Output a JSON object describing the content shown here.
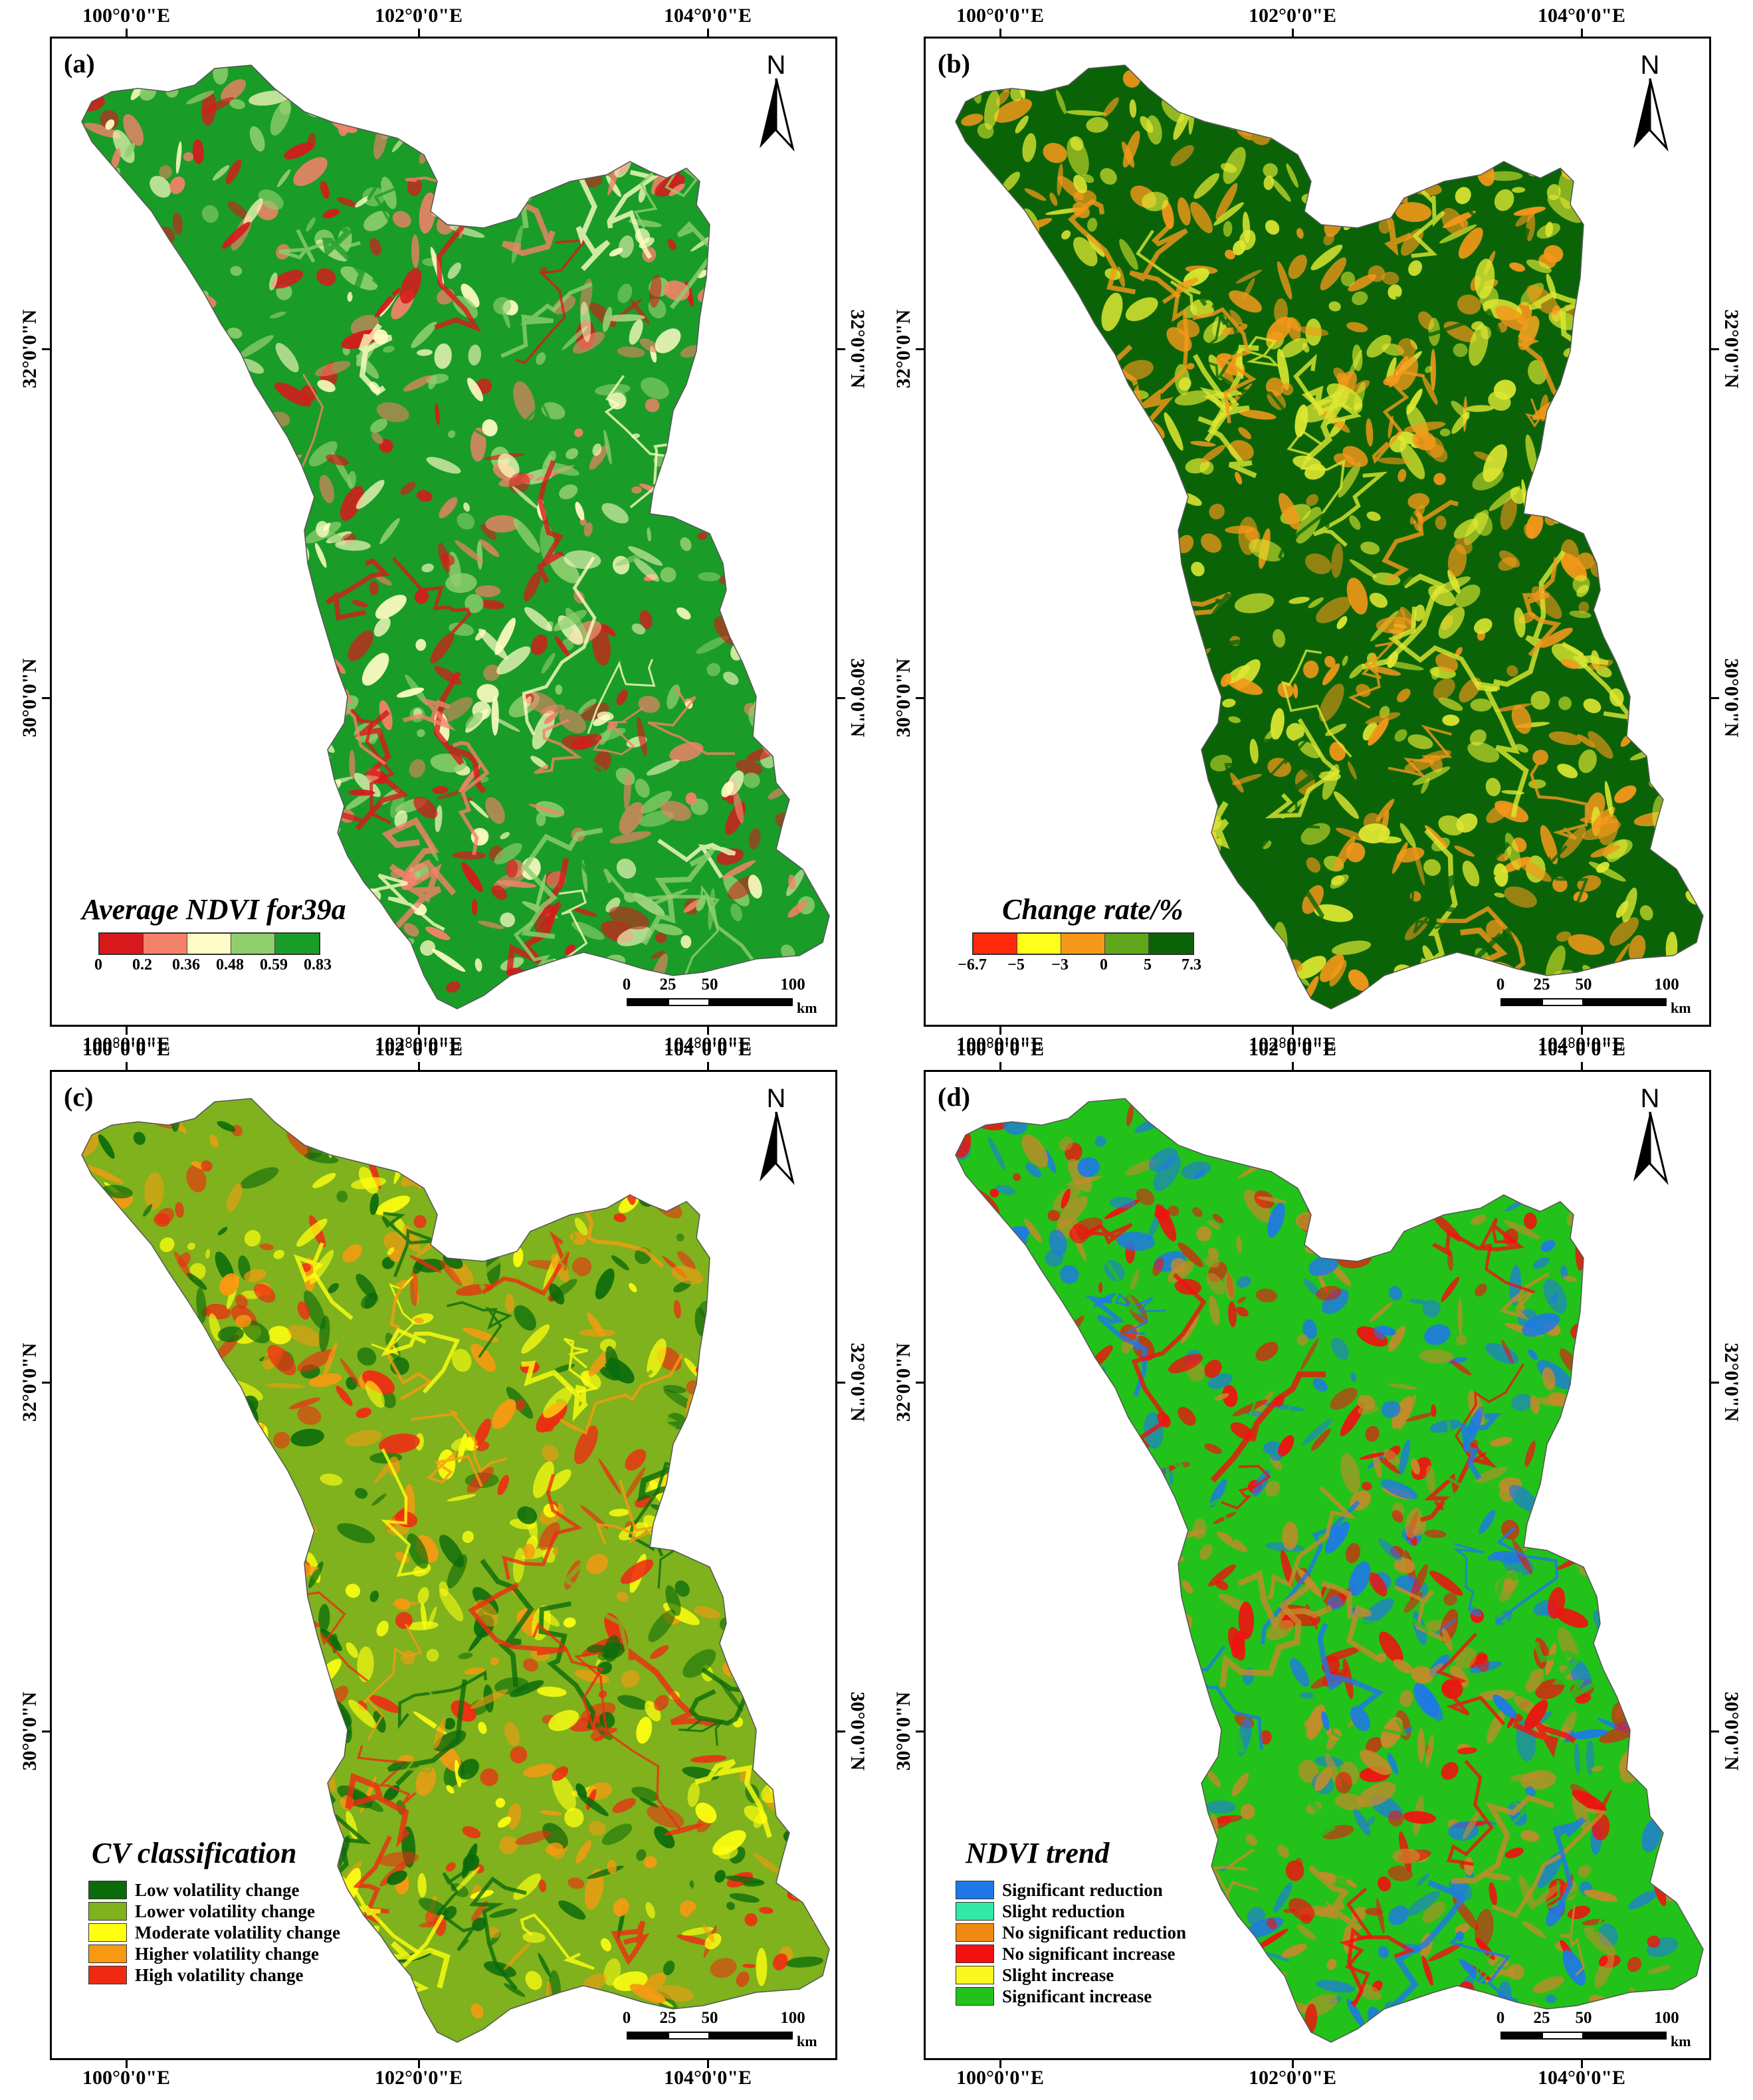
{
  "axes": {
    "lon_labels": [
      "100°0'0\"E",
      "102°0'0\"E",
      "104°0'0\"E"
    ],
    "lat_labels": [
      "32°0'0\"N",
      "30°0'0\"N"
    ]
  },
  "north_arrow": {
    "letter": "N",
    "icon": "north-arrow-icon"
  },
  "scale_bar": {
    "ticks": [
      "0",
      "25",
      "50",
      "100"
    ],
    "unit": "km"
  },
  "panels": [
    {
      "id": "a",
      "label": "(a)",
      "legend": {
        "type": "colorbar",
        "title": "Average NDVI for39a",
        "colors": [
          "#d7191c",
          "#f4826a",
          "#fefcc4",
          "#8fcf6e",
          "#1a9c28"
        ],
        "tick_labels": [
          "0",
          "0.2",
          "0.36",
          "0.48",
          "0.59",
          "0.83"
        ]
      },
      "palette": [
        "#1a9c28",
        "#8fcf6e",
        "#fefcc4",
        "#d7191c",
        "#f4826a"
      ]
    },
    {
      "id": "b",
      "label": "(b)",
      "legend": {
        "type": "colorbar",
        "title": "Change rate/%",
        "colors": [
          "#ff2a0a",
          "#ffff1a",
          "#f5981a",
          "#5fa81b",
          "#0a6407"
        ],
        "tick_labels": [
          "−6.7",
          "−5",
          "−3",
          "0",
          "5",
          "7.3"
        ]
      },
      "palette": [
        "#0a6407",
        "#f5981a",
        "#dfe832"
      ]
    },
    {
      "id": "c",
      "label": "(c)",
      "legend": {
        "type": "categorical",
        "title": "CV classification",
        "items": [
          {
            "color": "#0b6b0b",
            "label": "Low volatility change"
          },
          {
            "color": "#7fb21c",
            "label": "Lower volatility change"
          },
          {
            "color": "#ffff10",
            "label": "Moderate volatility change"
          },
          {
            "color": "#f79a12",
            "label": "Higher volatility change"
          },
          {
            "color": "#f02a12",
            "label": "High volatility change"
          }
        ]
      },
      "palette": [
        "#7fb21c",
        "#0b6b0b",
        "#ffff10",
        "#f79a12",
        "#f02a12"
      ]
    },
    {
      "id": "d",
      "label": "(d)",
      "legend": {
        "type": "categorical",
        "title": "NDVI trend",
        "items": [
          {
            "color": "#1f78e8",
            "label": "Significant reduction"
          },
          {
            "color": "#30e8a8",
            "label": "Slight reduction"
          },
          {
            "color": "#f08a12",
            "label": "No significant reduction"
          },
          {
            "color": "#f21010",
            "label": "No significant increase"
          },
          {
            "color": "#f8f820",
            "label": "Slight increase"
          },
          {
            "color": "#22c21a",
            "label": "Significant increase"
          }
        ]
      },
      "palette": [
        "#22c21a",
        "#c78a2a",
        "#f21010",
        "#1f78e8"
      ]
    }
  ]
}
